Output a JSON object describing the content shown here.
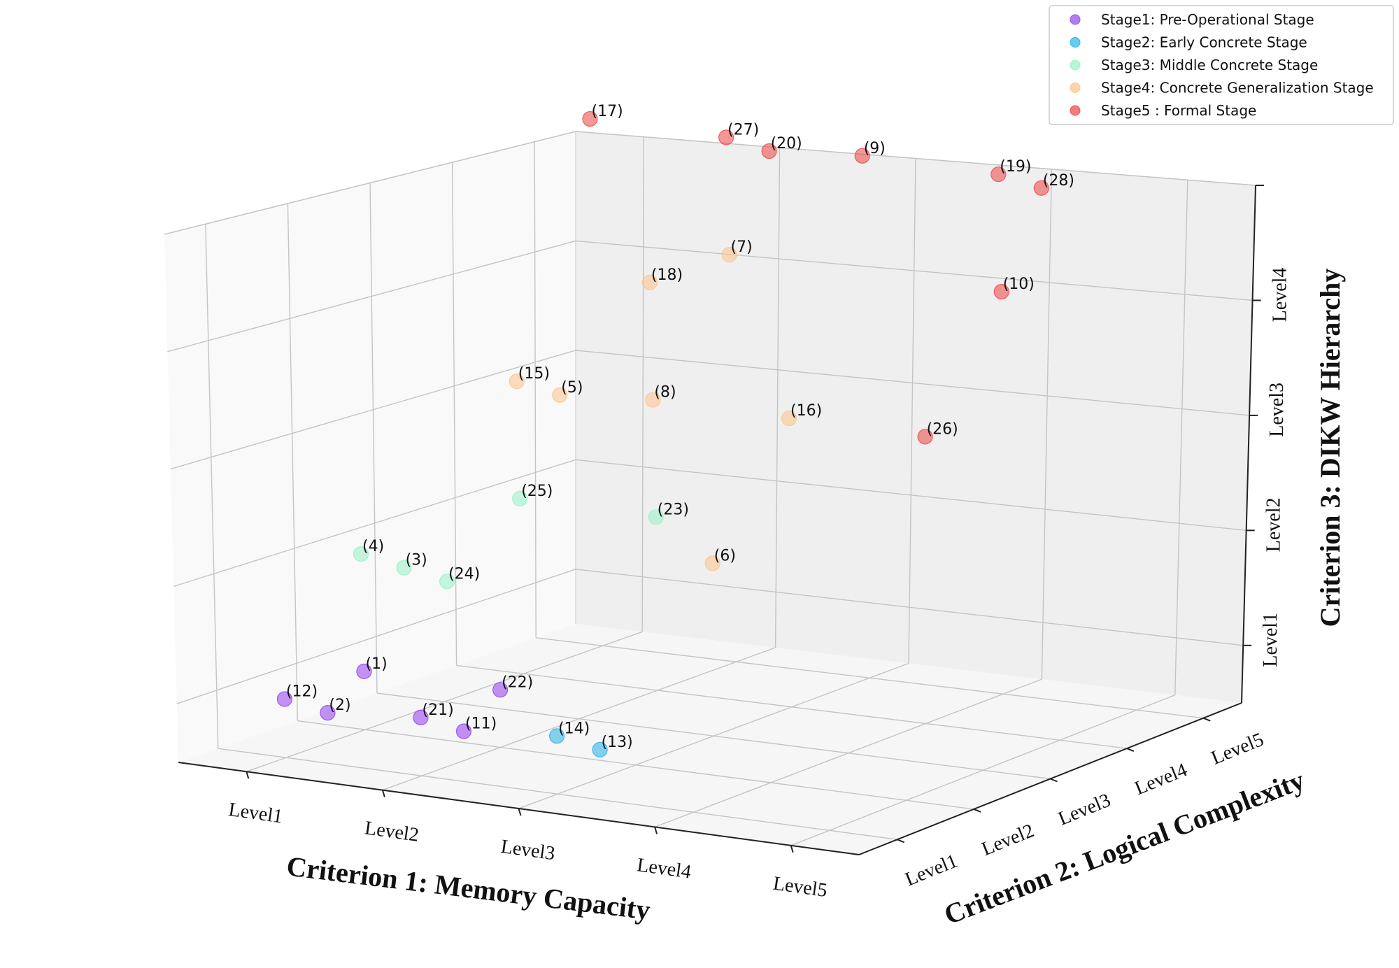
{
  "chart_data": {
    "type": "scatter",
    "title": "",
    "xlabel": "Criterion 1: Memory Capacity",
    "ylabel": "Criterion 2: Logical Complexity",
    "zlabel": "Criterion 3: DIKW Hierarchy",
    "x_ticks": [
      "Level1",
      "Level2",
      "Level3",
      "Level4",
      "Level5"
    ],
    "y_ticks": [
      "Level1",
      "Level2",
      "Level3",
      "Level4",
      "Level5"
    ],
    "z_ticks": [
      "Level1",
      "Level2",
      "Level3",
      "Level4"
    ],
    "legend_position": "top-right",
    "grid": true,
    "series": [
      {
        "name": "Stage1: Pre-Operational Stage",
        "color": "#9b4dee",
        "points": [
          {
            "label": "(12)",
            "x": 1,
            "y": 1,
            "z": 1
          },
          {
            "label": "(2)",
            "x": 1,
            "y": 1,
            "z": 1
          },
          {
            "label": "(21)",
            "x": 2,
            "y": 1,
            "z": 1
          },
          {
            "label": "(11)",
            "x": 2,
            "y": 1,
            "z": 1
          },
          {
            "label": "(1)",
            "x": 1,
            "y": 2,
            "z": 1
          },
          {
            "label": "(22)",
            "x": 2,
            "y": 2,
            "z": 1
          }
        ]
      },
      {
        "name": "Stage2: Early Concrete Stage",
        "color": "#35b8e8",
        "points": [
          {
            "label": "(14)",
            "x": 3,
            "y": 1,
            "z": 1
          },
          {
            "label": "(13)",
            "x": 3,
            "y": 1,
            "z": 1
          }
        ]
      },
      {
        "name": "Stage3: Middle Concrete Stage",
        "color": "#9df2c8",
        "points": [
          {
            "label": "(4)",
            "x": 1,
            "y": 2,
            "z": 2
          },
          {
            "label": "(3)",
            "x": 1,
            "y": 2,
            "z": 2
          },
          {
            "label": "(24)",
            "x": 1,
            "y": 2,
            "z": 2
          },
          {
            "label": "(25)",
            "x": 1,
            "y": 4,
            "z": 2
          },
          {
            "label": "(23)",
            "x": 2,
            "y": 4,
            "z": 2
          }
        ]
      },
      {
        "name": "Stage4: Concrete Generalization Stage",
        "color": "#fbc791",
        "points": [
          {
            "label": "(15)",
            "x": 1,
            "y": 4,
            "z": 3
          },
          {
            "label": "(5)",
            "x": 1,
            "y": 4,
            "z": 3
          },
          {
            "label": "(8)",
            "x": 2,
            "y": 4,
            "z": 3
          },
          {
            "label": "(16)",
            "x": 3,
            "y": 4,
            "z": 3
          },
          {
            "label": "(6)",
            "x": 3,
            "y": 3,
            "z": 2
          },
          {
            "label": "(18)",
            "x": 2,
            "y": 4,
            "z": 4
          },
          {
            "label": "(7)",
            "x": 2,
            "y": 5,
            "z": 4
          }
        ]
      },
      {
        "name": "Stage5 : Formal Stage",
        "color": "#ed5252",
        "points": [
          {
            "label": "(17)",
            "x": 1,
            "y": 5,
            "z": 5
          },
          {
            "label": "(27)",
            "x": 2,
            "y": 5,
            "z": 5
          },
          {
            "label": "(9)",
            "x": 3,
            "y": 5,
            "z": 5
          },
          {
            "label": "(19)",
            "x": 4,
            "y": 5,
            "z": 5
          },
          {
            "label": "(28)",
            "x": 4,
            "y": 5,
            "z": 5
          },
          {
            "label": "(20)",
            "x": 2,
            "y": 5,
            "z": 5
          },
          {
            "label": "(10)",
            "x": 4,
            "y": 5,
            "z": 4
          },
          {
            "label": "(26)",
            "x": 4,
            "y": 4,
            "z": 3
          }
        ]
      }
    ]
  }
}
